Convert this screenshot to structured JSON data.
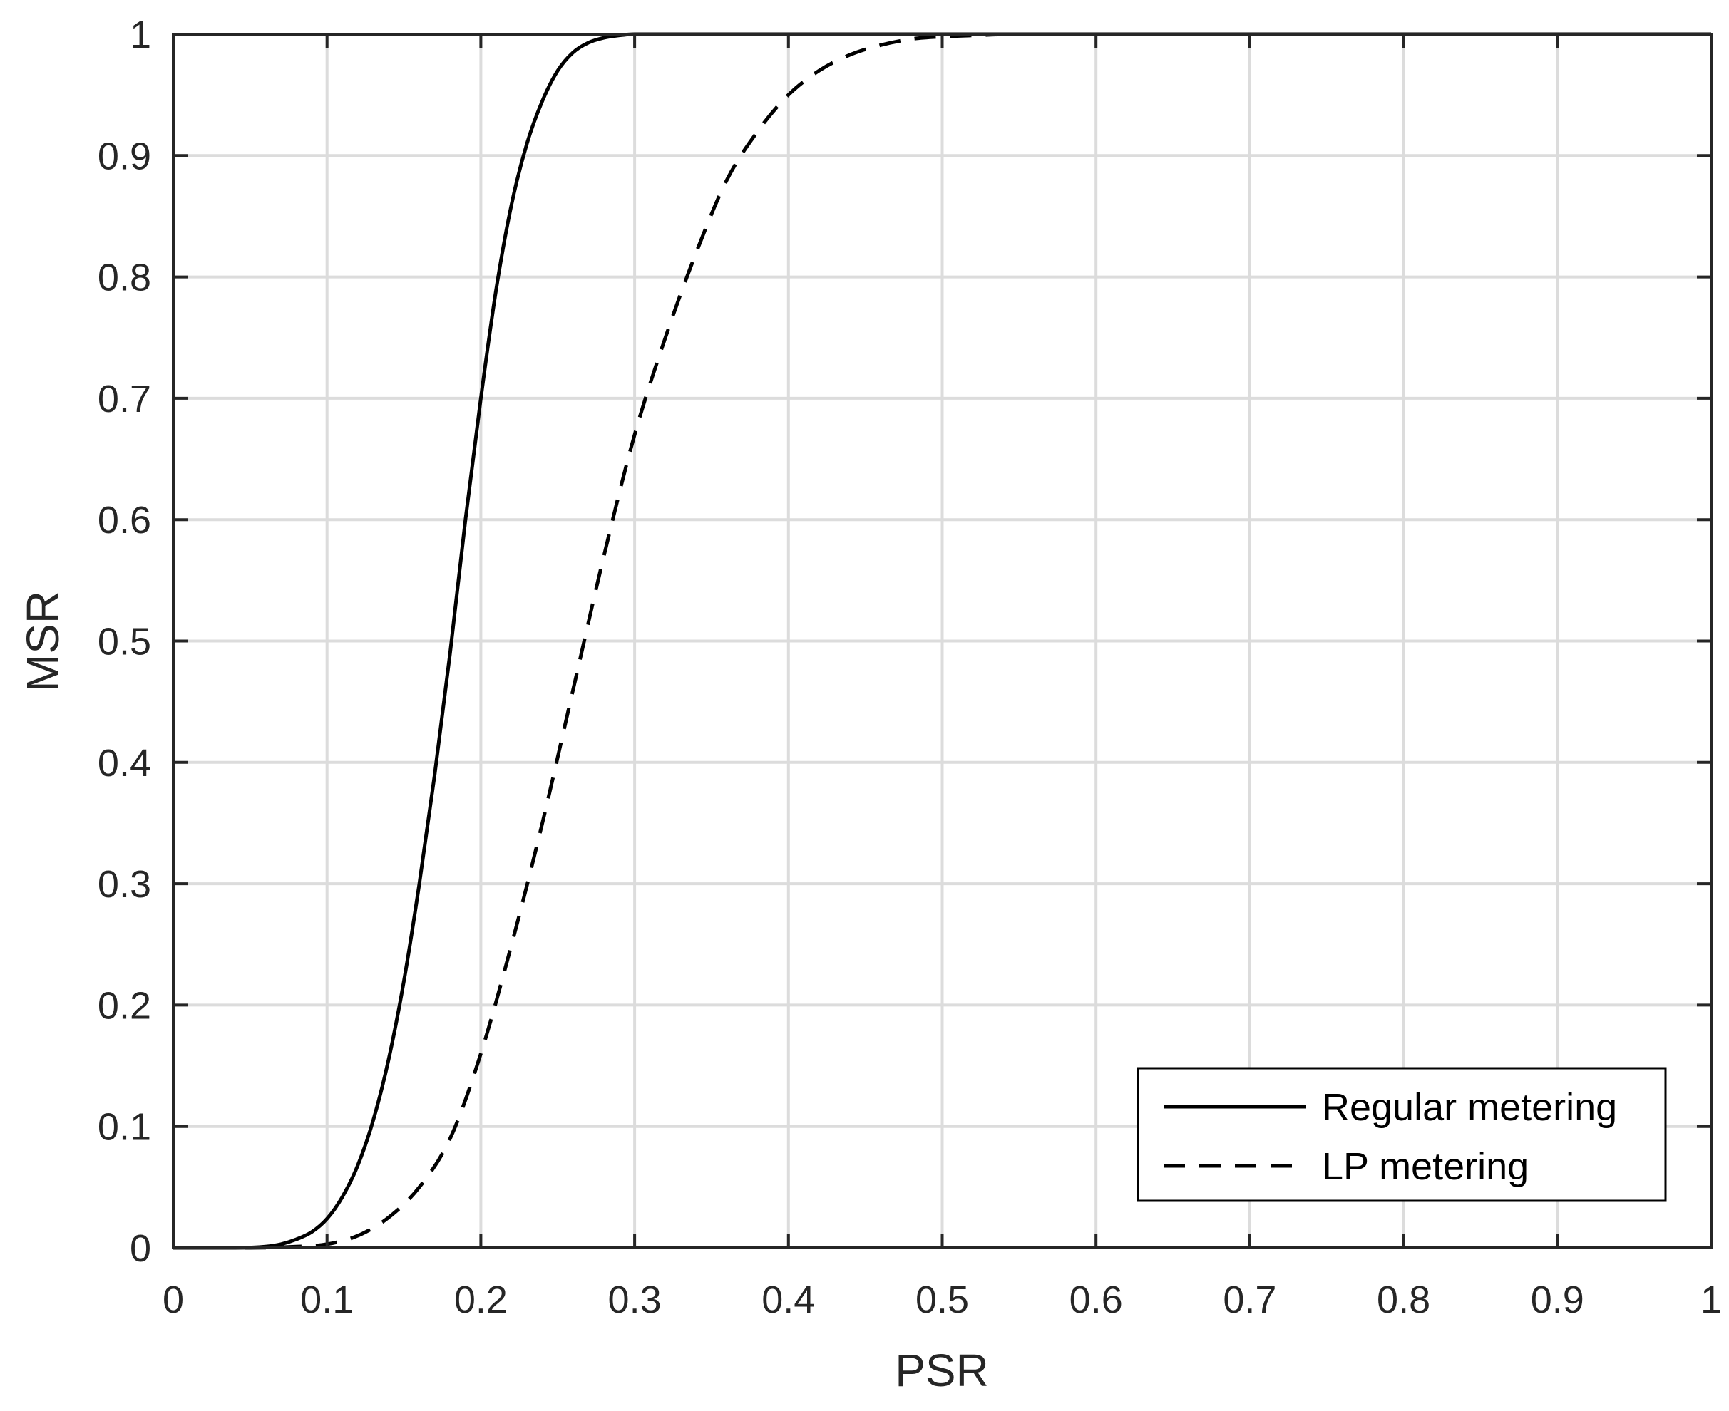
{
  "chart_data": {
    "type": "line",
    "title": "",
    "xlabel": "PSR",
    "ylabel": "MSR",
    "xlim": [
      0,
      1
    ],
    "ylim": [
      0,
      1
    ],
    "xticks": [
      "0",
      "0.1",
      "0.2",
      "0.3",
      "0.4",
      "0.5",
      "0.6",
      "0.7",
      "0.8",
      "0.9",
      "1"
    ],
    "yticks": [
      "0",
      "0.1",
      "0.2",
      "0.3",
      "0.4",
      "0.5",
      "0.6",
      "0.7",
      "0.8",
      "0.9",
      "1"
    ],
    "grid": true,
    "legend_position": "bottom-right",
    "series": [
      {
        "name": "Regular metering",
        "style": "solid",
        "color": "#000000",
        "x": [
          0,
          0.02,
          0.04,
          0.06,
          0.07,
          0.08,
          0.09,
          0.1,
          0.11,
          0.12,
          0.13,
          0.14,
          0.15,
          0.16,
          0.17,
          0.18,
          0.19,
          0.2,
          0.21,
          0.22,
          0.23,
          0.24,
          0.25,
          0.26,
          0.27,
          0.28,
          0.29,
          0.3,
          0.32,
          0.35,
          0.4,
          0.5,
          0.6,
          1.0
        ],
        "y": [
          0,
          0,
          0,
          0.001,
          0.003,
          0.007,
          0.013,
          0.024,
          0.042,
          0.068,
          0.105,
          0.155,
          0.22,
          0.3,
          0.39,
          0.49,
          0.6,
          0.7,
          0.79,
          0.86,
          0.91,
          0.945,
          0.97,
          0.985,
          0.993,
          0.997,
          0.999,
          1.0,
          1.0,
          1.0,
          1.0,
          1.0,
          1.0,
          1.0
        ]
      },
      {
        "name": "LP metering",
        "style": "dashed",
        "color": "#000000",
        "x": [
          0,
          0.05,
          0.08,
          0.1,
          0.12,
          0.14,
          0.16,
          0.18,
          0.2,
          0.22,
          0.24,
          0.26,
          0.28,
          0.3,
          0.32,
          0.34,
          0.36,
          0.38,
          0.4,
          0.42,
          0.44,
          0.46,
          0.48,
          0.5,
          0.52,
          0.55,
          0.6,
          1.0
        ],
        "y": [
          0,
          0,
          0.001,
          0.003,
          0.01,
          0.025,
          0.05,
          0.09,
          0.16,
          0.25,
          0.35,
          0.46,
          0.57,
          0.67,
          0.75,
          0.82,
          0.88,
          0.92,
          0.95,
          0.97,
          0.983,
          0.991,
          0.996,
          0.998,
          0.999,
          1.0,
          1.0,
          1.0
        ]
      }
    ]
  }
}
